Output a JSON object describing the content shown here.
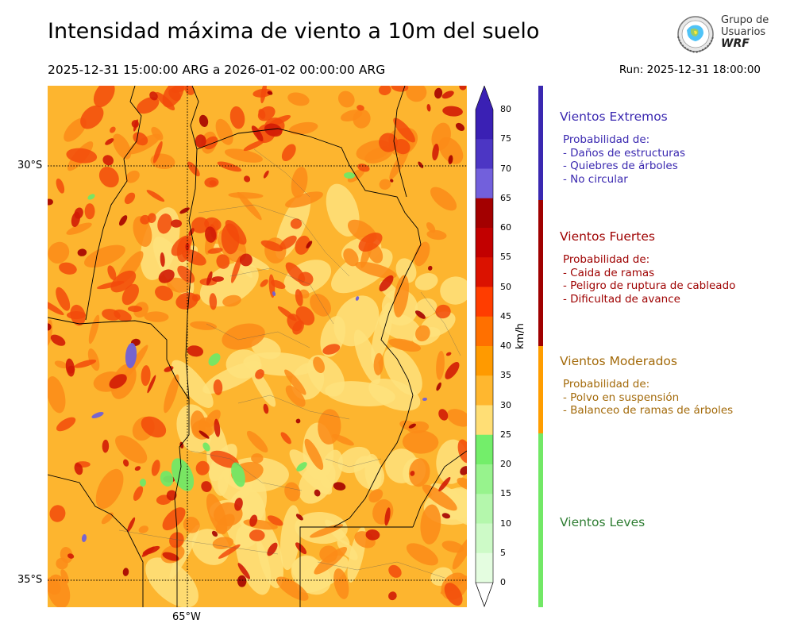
{
  "header": {
    "title": "Intensidad máxima de viento a 10m del suelo",
    "period": "2025-12-31 15:00:00 ARG  a  2026-01-02 00:00:00 ARG",
    "run": "Run: 2025-12-31 18:00:00"
  },
  "logo": {
    "line1": "Grupo de",
    "line2": "Usuarios",
    "brand": "WRF"
  },
  "map": {
    "lat_labels": [
      "30°S",
      "35°S"
    ],
    "lon_labels": [
      "65°W"
    ],
    "colors": {
      "background": "#fdb52f",
      "light": "#fee27d",
      "mid_orange": "#fc8b17",
      "red_orange": "#f24a0a",
      "red": "#d11b05",
      "dark_red": "#a50000",
      "green": "#72e866",
      "purple": "#7060d8",
      "border": "#000000"
    }
  },
  "colorbar": {
    "unit": "km/h",
    "ticks": [
      "80",
      "75",
      "70",
      "65",
      "60",
      "55",
      "50",
      "45",
      "40",
      "35",
      "30",
      "25",
      "20",
      "15",
      "10",
      "5",
      "0"
    ],
    "colors": [
      "#3a20b4",
      "#4c36c4",
      "#7260dc",
      "#a30000",
      "#c20000",
      "#db1200",
      "#ff3d00",
      "#ff7000",
      "#ff9a00",
      "#ffb72f",
      "#ffde75",
      "#73ee6a",
      "#97f38d",
      "#b4f7ac",
      "#cdfac7",
      "#e4fde0"
    ]
  },
  "categories": [
    {
      "title": "Vientos Extremos",
      "color": "#3a28b0",
      "prob_label": "Probabilidad de:",
      "items": [
        "- Daños de estructuras",
        "- Quiebres de árboles",
        "- No circular"
      ]
    },
    {
      "title": "Vientos Fuertes",
      "color": "#9e0000",
      "prob_label": "Probabilidad de:",
      "items": [
        "- Caida de ramas",
        "- Peligro de ruptura de cableado",
        "- Dificultad de avance"
      ]
    },
    {
      "title": "Vientos Moderados",
      "color": "#a36a0a",
      "prob_label": "Probabilidad de:",
      "items": [
        "- Polvo en suspensión",
        "- Balanceo de ramas de árboles"
      ]
    },
    {
      "title": "Vientos Leves",
      "color": "#2e7d32",
      "prob_label": "",
      "items": []
    }
  ]
}
